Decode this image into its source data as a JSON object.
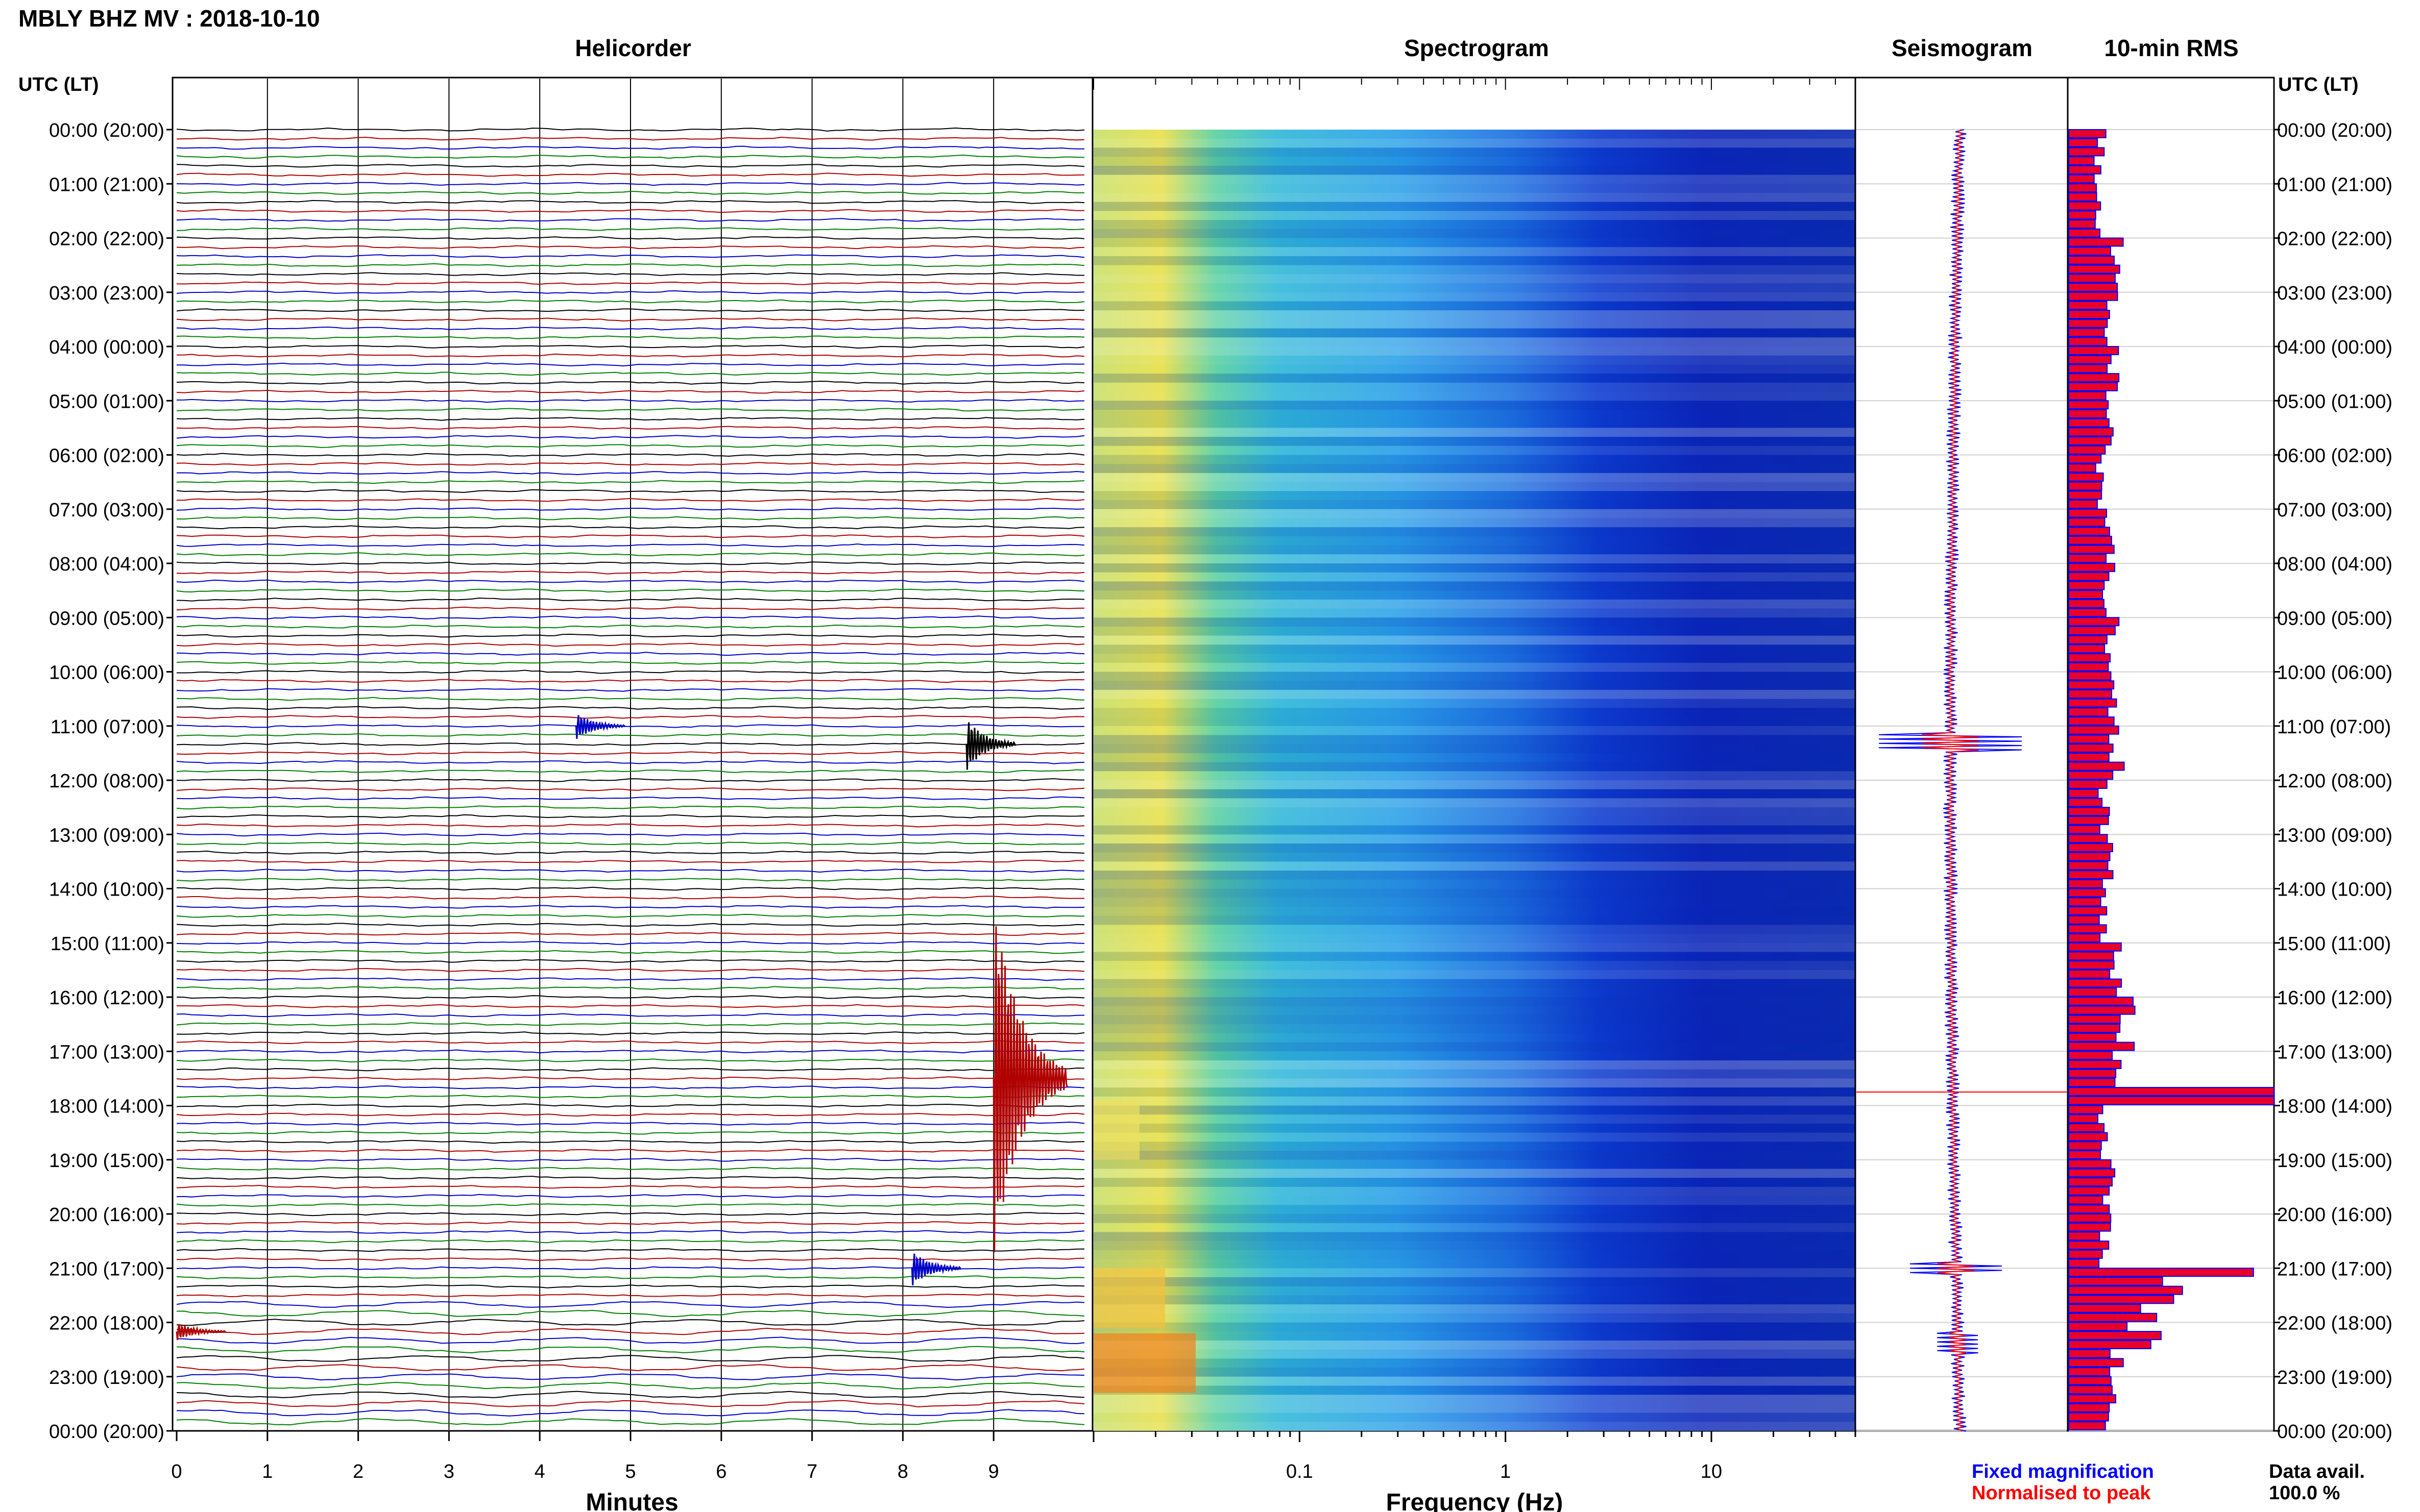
{
  "header": {
    "station_title": "MBLY BHZ MV : 2018-10-10"
  },
  "panels": {
    "helicorder": "Helicorder",
    "spectrogram": "Spectrogram",
    "seismogram": "Seismogram",
    "rms": "10-min RMS"
  },
  "time_axis": {
    "left_header": "UTC (LT)",
    "right_header": "UTC (LT)",
    "labels": [
      "00:00 (20:00)",
      "01:00 (21:00)",
      "02:00 (22:00)",
      "03:00 (23:00)",
      "04:00 (00:00)",
      "05:00 (01:00)",
      "06:00 (02:00)",
      "07:00 (03:00)",
      "08:00 (04:00)",
      "09:00 (05:00)",
      "10:00 (06:00)",
      "11:00 (07:00)",
      "12:00 (08:00)",
      "13:00 (09:00)",
      "14:00 (10:00)",
      "15:00 (11:00)",
      "16:00 (12:00)",
      "17:00 (13:00)",
      "18:00 (14:00)",
      "19:00 (15:00)",
      "20:00 (16:00)",
      "21:00 (17:00)",
      "22:00 (18:00)",
      "23:00 (19:00)",
      "00:00 (20:00)"
    ]
  },
  "footer": {
    "fixed_magnification": "Fixed magnification",
    "normalised": "Normalised to peak",
    "data_avail_label": "Data avail.",
    "data_avail_value": "100.0 %"
  },
  "colors": {
    "trace_cycle": [
      "#000000",
      "#b00000",
      "#0000c8",
      "#008000"
    ],
    "fixed_magnification": "#0000ff",
    "normalised": "#ff0000",
    "rms_fill": "#e8002a",
    "rms_edge": "#0000ff"
  },
  "chart_data": [
    {
      "type": "line",
      "panel": "Helicorder",
      "xlabel": "Minutes",
      "x_ticks": [
        "0",
        "1",
        "2",
        "3",
        "4",
        "5",
        "6",
        "7",
        "8",
        "9"
      ],
      "xlim": [
        0,
        10
      ],
      "rows": 144,
      "row_minutes": 10,
      "events": [
        {
          "hour": 11.0,
          "minute": 4.4,
          "amplitude": 3
        },
        {
          "hour": 11.33,
          "minute": 8.7,
          "amplitude": 6
        },
        {
          "hour": 17.5,
          "minute": 9.0,
          "amplitude": 40
        },
        {
          "hour": 21.0,
          "minute": 8.1,
          "amplitude": 4
        },
        {
          "hour": 22.17,
          "minute": 0.0,
          "amplitude": 2
        }
      ]
    },
    {
      "type": "heatmap",
      "panel": "Spectrogram",
      "xlabel": "Frequency (Hz)",
      "x_scale": "log",
      "x_ticks": [
        "0.1",
        "1",
        "10"
      ],
      "xlim": [
        0.01,
        50
      ],
      "y": "time of day UTC, 0 to 24 h"
    },
    {
      "type": "line",
      "panel": "Seismogram",
      "series": [
        {
          "name": "Fixed magnification"
        },
        {
          "name": "Normalised to peak"
        }
      ]
    },
    {
      "type": "bar",
      "panel": "10-min RMS",
      "orientation": "horizontal",
      "bins": 144,
      "rms_by_hour": [
        1.6,
        1.4,
        2.4,
        2.2,
        2.2,
        1.9,
        1.7,
        2.0,
        2.0,
        2.3,
        2.1,
        2.4,
        1.8,
        1.9,
        1.7,
        2.3,
        2.9,
        2.5,
        1.8,
        2.0,
        1.8,
        5.0,
        2.6,
        2.0
      ],
      "peaks": [
        {
          "hour": 17.75,
          "value": 10.0
        },
        {
          "hour": 21.0,
          "value": 9.0
        },
        {
          "hour": 22.17,
          "value": 4.5
        },
        {
          "hour": 22.33,
          "value": 4.0
        },
        {
          "hour": 21.67,
          "value": 3.5
        }
      ],
      "xlim": [
        0,
        10
      ]
    }
  ]
}
